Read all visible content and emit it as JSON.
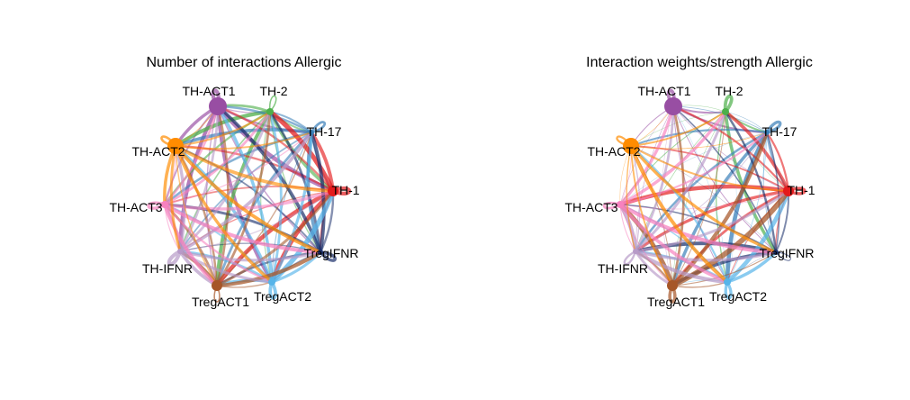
{
  "panels": [
    {
      "title": "Number of interactions Allergic",
      "weights": "count"
    },
    {
      "title": "Interaction weights/strength Allergic",
      "weights": "strength"
    }
  ],
  "nodes": [
    {
      "id": "TH-ACT1",
      "label": "TH-ACT1",
      "color": "#984EA3",
      "size": 10
    },
    {
      "id": "TH-2",
      "label": "TH-2",
      "color": "#4DAF4A",
      "size": 4
    },
    {
      "id": "TH-17",
      "label": "TH-17",
      "color": "#377EB8",
      "size": 3
    },
    {
      "id": "TH-1",
      "label": "TH-1",
      "color": "#E41A1C",
      "size": 6
    },
    {
      "id": "TregIFNR",
      "label": "TregIFNR",
      "color": "#1B2F6B",
      "size": 3
    },
    {
      "id": "TregACT2",
      "label": "TregACT2",
      "color": "#56B4E9",
      "size": 4
    },
    {
      "id": "TregACT1",
      "label": "TregACT1",
      "color": "#A65628",
      "size": 6
    },
    {
      "id": "TH-IFNR",
      "label": "TH-IFNR",
      "color": "#B79AC8",
      "size": 3
    },
    {
      "id": "TH-ACT3",
      "label": "TH-ACT3",
      "color": "#F781BF",
      "size": 4
    },
    {
      "id": "TH-ACT2",
      "label": "TH-ACT2",
      "color": "#FF8C00",
      "size": 9
    }
  ]
}
